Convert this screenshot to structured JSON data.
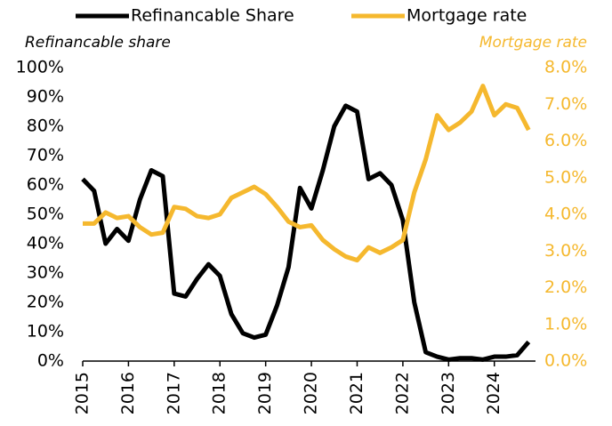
{
  "chart_data": {
    "type": "line",
    "y_label": "Refinancable share",
    "y2_label": "Mortgage rate",
    "x": [
      2015,
      2015.25,
      2015.5,
      2015.75,
      2016,
      2016.25,
      2016.5,
      2016.75,
      2017,
      2017.25,
      2017.5,
      2017.75,
      2018,
      2018.25,
      2018.5,
      2018.75,
      2019,
      2019.25,
      2019.5,
      2019.75,
      2020,
      2020.25,
      2020.5,
      2020.75,
      2021,
      2021.25,
      2021.5,
      2021.75,
      2022,
      2022.25,
      2022.5,
      2022.75,
      2023,
      2023.25,
      2023.5,
      2023.75,
      2024,
      2024.25,
      2024.5,
      2024.75
    ],
    "series": [
      {
        "name": "Refinancable Share",
        "color": "#000000",
        "values": [
          62,
          58,
          40,
          45,
          41,
          55,
          65,
          63,
          23,
          22,
          28,
          33,
          29,
          16,
          9.5,
          8,
          9,
          19,
          32,
          59,
          52,
          65,
          80,
          87,
          85,
          62,
          64,
          60,
          48,
          20,
          3,
          1.5,
          0.5,
          1,
          1,
          0.5,
          1.5,
          1.5,
          2,
          6.5
        ]
      },
      {
        "name": "Mortgage rate",
        "color": "#f5b82e",
        "axis": "y2",
        "values": [
          3.75,
          3.75,
          4.05,
          3.9,
          3.95,
          3.65,
          3.45,
          3.5,
          4.2,
          4.15,
          3.95,
          3.9,
          4.0,
          4.45,
          4.6,
          4.75,
          4.55,
          4.2,
          3.8,
          3.65,
          3.7,
          3.3,
          3.05,
          2.85,
          2.75,
          3.1,
          2.95,
          3.1,
          3.3,
          4.6,
          5.5,
          6.7,
          6.3,
          6.5,
          6.8,
          7.5,
          6.7,
          7.0,
          6.9,
          6.3
        ]
      }
    ],
    "xlim": [
      2015,
      2024.9
    ],
    "xticks": [
      2015,
      2016,
      2017,
      2018,
      2019,
      2020,
      2021,
      2022,
      2023,
      2024
    ],
    "ylim": [
      0,
      100
    ],
    "yticks": [
      {
        "value": 0,
        "label": "0%"
      },
      {
        "value": 10,
        "label": "10%"
      },
      {
        "value": 20,
        "label": "20%"
      },
      {
        "value": 30,
        "label": "30%"
      },
      {
        "value": 40,
        "label": "40%"
      },
      {
        "value": 50,
        "label": "50%"
      },
      {
        "value": 60,
        "label": "60%"
      },
      {
        "value": 70,
        "label": "70%"
      },
      {
        "value": 80,
        "label": "80%"
      },
      {
        "value": 90,
        "label": "90%"
      },
      {
        "value": 100,
        "label": "100%"
      }
    ],
    "y2lim": [
      0,
      8
    ],
    "y2ticks": [
      {
        "value": 0,
        "label": "0.0%"
      },
      {
        "value": 1,
        "label": "1.0%"
      },
      {
        "value": 2,
        "label": "2.0%"
      },
      {
        "value": 3,
        "label": "3.0%"
      },
      {
        "value": 4,
        "label": "4.0%"
      },
      {
        "value": 5,
        "label": "5.0%"
      },
      {
        "value": 6,
        "label": "6.0%"
      },
      {
        "value": 7,
        "label": "7.0%"
      },
      {
        "value": 8,
        "label": "8.0%"
      }
    ],
    "grid": false,
    "legend": "top"
  }
}
